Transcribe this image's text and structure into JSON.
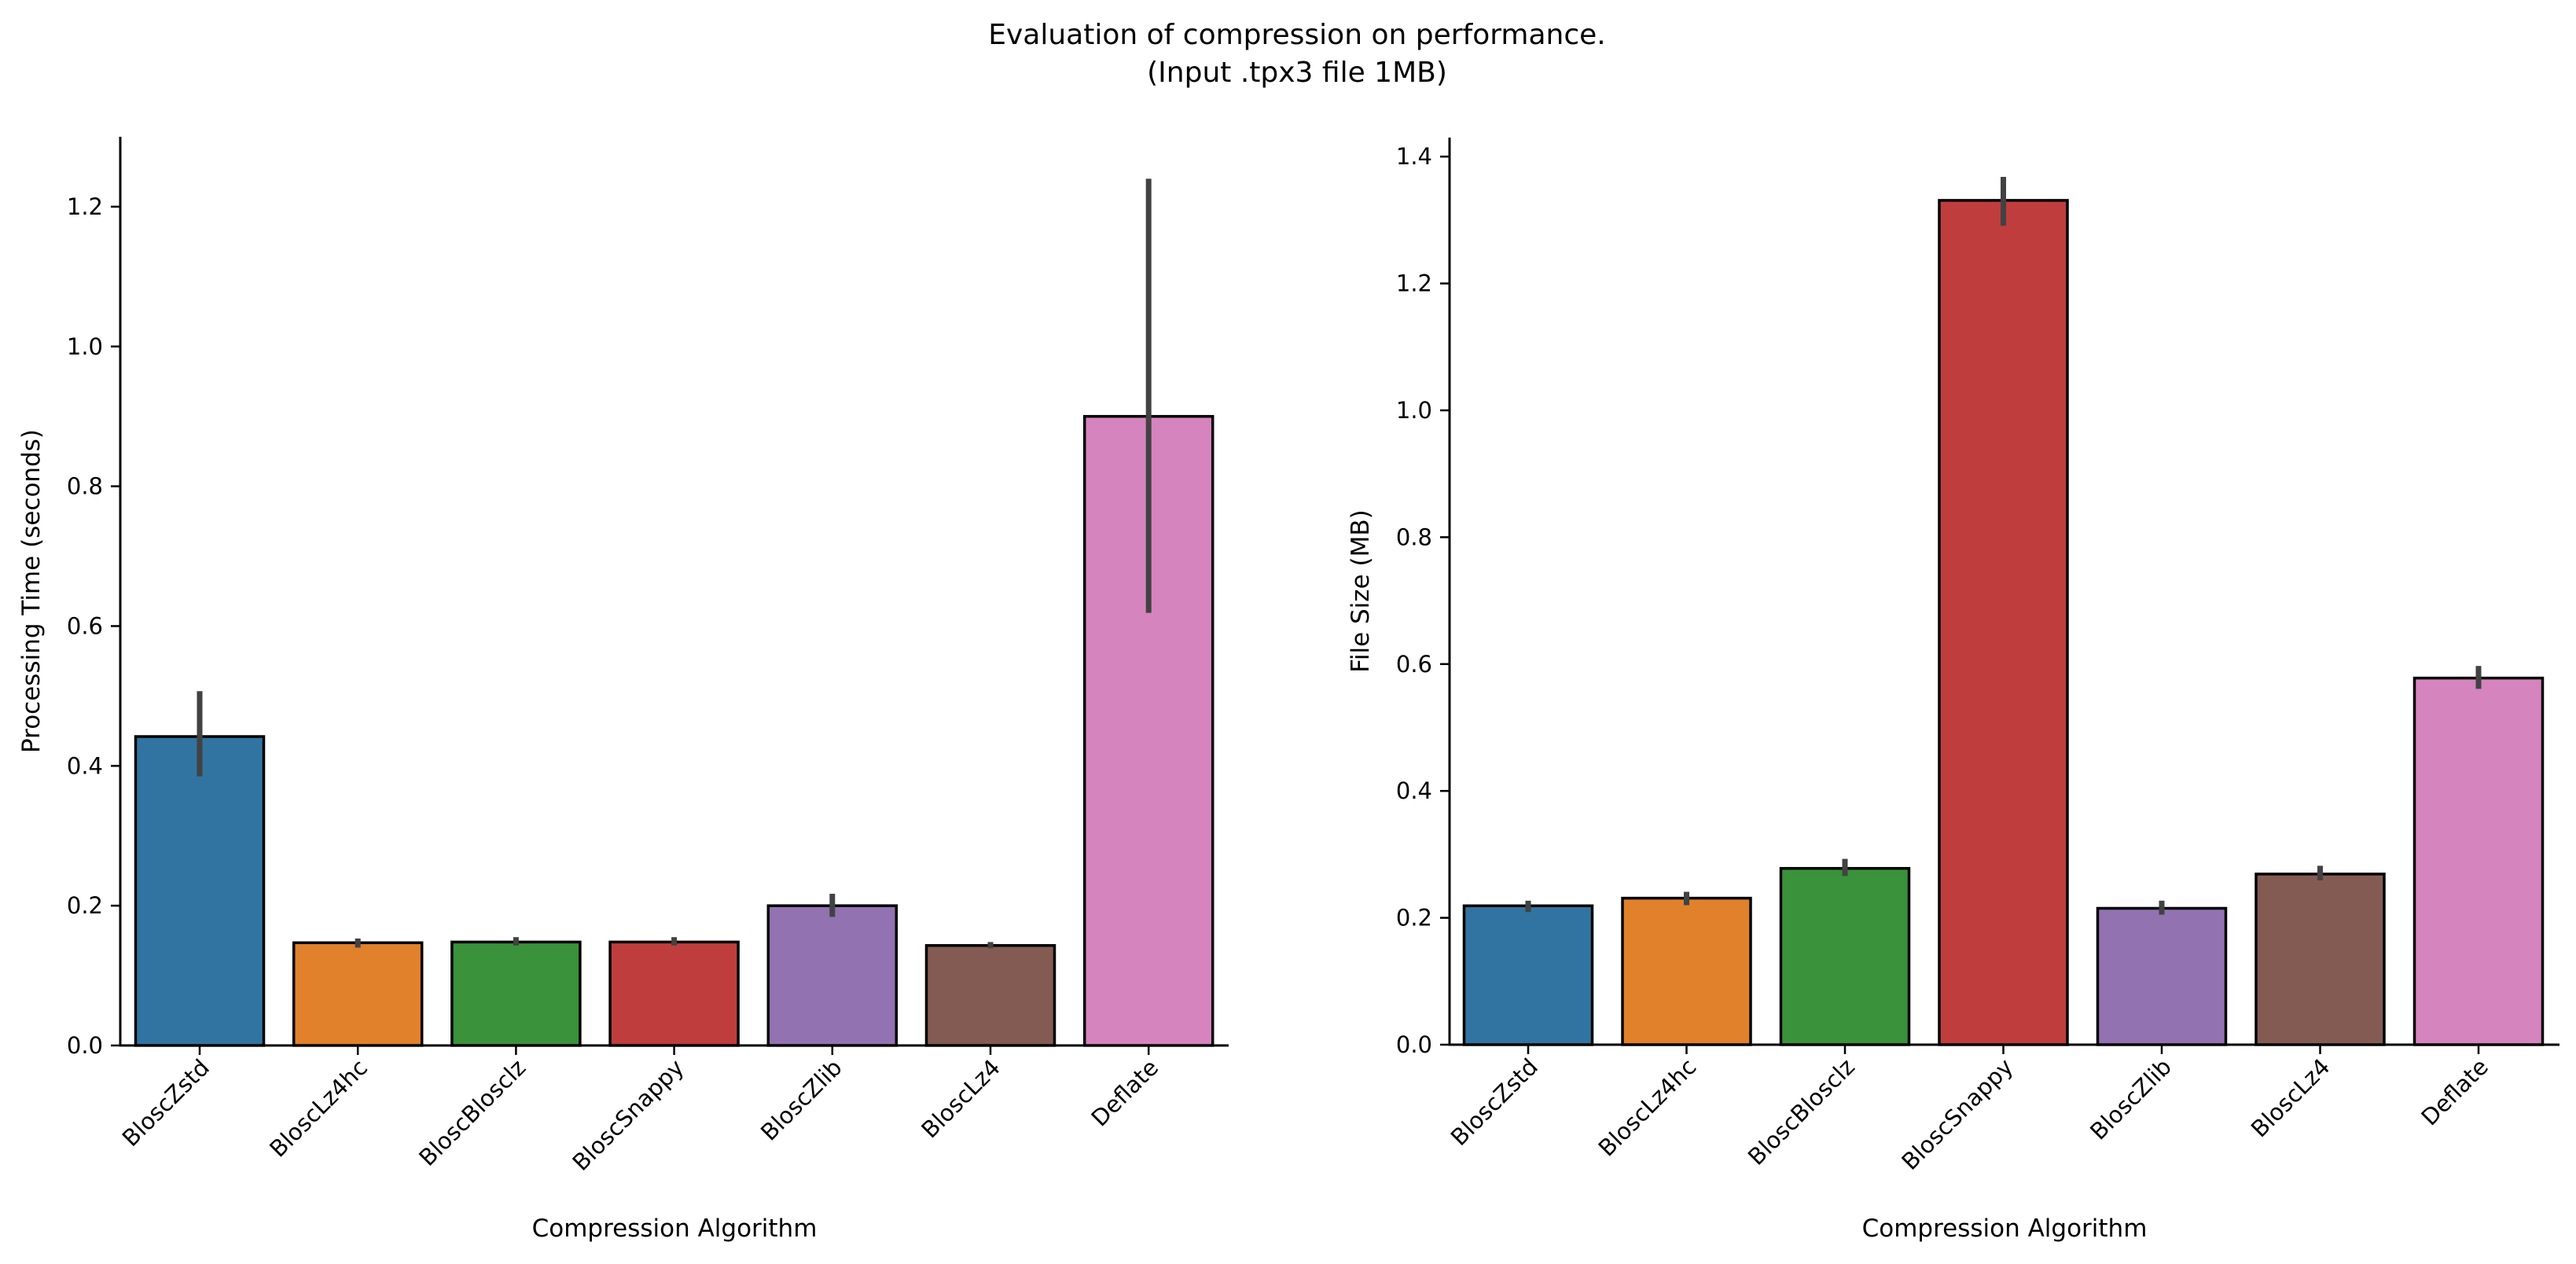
{
  "figure": {
    "title_line1": "Evaluation of compression on performance.",
    "title_line2": "(Input .tpx3 file 1MB)"
  },
  "chart_data": [
    {
      "type": "bar",
      "title": "",
      "xlabel": "Compression Algorithm",
      "ylabel": "Processing Time (seconds)",
      "ylim": [
        0,
        1.3
      ],
      "yticks": [
        0.0,
        0.2,
        0.4,
        0.6,
        0.8,
        1.0,
        1.2
      ],
      "ytick_labels": [
        "0.0",
        "0.2",
        "0.4",
        "0.6",
        "0.8",
        "1.0",
        "1.2"
      ],
      "categories": [
        "BloscZstd",
        "BloscLz4hc",
        "BloscBlosclz",
        "BloscSnappy",
        "BloscZlib",
        "BloscLz4",
        "Deflate"
      ],
      "values": [
        0.442,
        0.147,
        0.148,
        0.148,
        0.2,
        0.143,
        0.9
      ],
      "error_low": [
        0.385,
        0.14,
        0.143,
        0.143,
        0.184,
        0.139,
        0.619
      ],
      "error_high": [
        0.507,
        0.153,
        0.155,
        0.155,
        0.217,
        0.148,
        1.24
      ],
      "colors": [
        "#3274a1",
        "#e1812c",
        "#3a923a",
        "#c03d3e",
        "#9372b2",
        "#845b53",
        "#d684bd"
      ],
      "grid": false,
      "legend": "none"
    },
    {
      "type": "bar",
      "title": "",
      "xlabel": "Compression Algorithm",
      "ylabel": "File Size (MB)",
      "ylim": [
        0,
        1.43
      ],
      "yticks": [
        0.0,
        0.2,
        0.4,
        0.6,
        0.8,
        1.0,
        1.2,
        1.4
      ],
      "ytick_labels": [
        "0.0",
        "0.2",
        "0.4",
        "0.6",
        "0.8",
        "1.0",
        "1.2",
        "1.4"
      ],
      "categories": [
        "BloscZstd",
        "BloscLz4hc",
        "BloscBlosclz",
        "BloscSnappy",
        "BloscZlib",
        "BloscLz4",
        "Deflate"
      ],
      "values": [
        0.219,
        0.231,
        0.278,
        1.331,
        0.215,
        0.269,
        0.578
      ],
      "error_low": [
        0.209,
        0.22,
        0.266,
        1.291,
        0.205,
        0.259,
        0.561
      ],
      "error_high": [
        0.227,
        0.241,
        0.293,
        1.368,
        0.227,
        0.282,
        0.597
      ],
      "colors": [
        "#3274a1",
        "#e1812c",
        "#3a923a",
        "#c03d3e",
        "#9372b2",
        "#845b53",
        "#d684bd"
      ],
      "grid": false,
      "legend": "none"
    }
  ]
}
